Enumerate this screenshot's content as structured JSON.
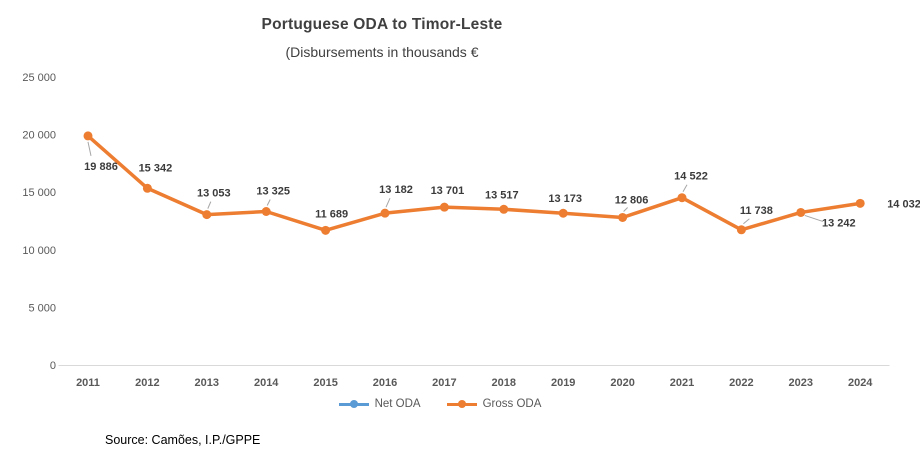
{
  "chart_data": {
    "type": "line",
    "title": "Portuguese ODA to Timor-Leste",
    "subtitle": "(Disbursements in thousands €",
    "categories": [
      "2011",
      "2012",
      "2013",
      "2014",
      "2015",
      "2016",
      "2017",
      "2018",
      "2019",
      "2020",
      "2021",
      "2022",
      "2023",
      "2024"
    ],
    "series": [
      {
        "name": "Net ODA",
        "color": "#5B9BD5",
        "visible_in_plot": false
      },
      {
        "name": "Gross ODA",
        "color": "#ED7D31",
        "values": [
          19886,
          15342,
          13053,
          13325,
          11689,
          13182,
          13701,
          13517,
          13173,
          12806,
          14522,
          11738,
          13242,
          14032
        ],
        "value_labels": [
          "19 886",
          "15 342",
          "13 053",
          "13 325",
          "11 689",
          "13 182",
          "13 701",
          "13 517",
          "13 173",
          "12 806",
          "14 522",
          "11 738",
          "13 242",
          "14 032"
        ]
      }
    ],
    "ylim": [
      0,
      25000
    ],
    "yticks": [
      {
        "value": 0,
        "label": "0"
      },
      {
        "value": 5000,
        "label": "5 000"
      },
      {
        "value": 10000,
        "label": "10 000"
      },
      {
        "value": 15000,
        "label": "15 000"
      },
      {
        "value": 20000,
        "label": "20 000"
      },
      {
        "value": 25000,
        "label": "25 000"
      }
    ],
    "grid": false,
    "legend_position": "bottom"
  },
  "source_note": "Source: Camões, I.P./GPPE",
  "colors": {
    "gross_oda_line": "#ED7D31",
    "net_oda_line": "#5B9BD5",
    "data_label_text": "#3B3B3B",
    "axis_text": "#595959",
    "axis_line": "#D9D9D9",
    "leader_line": "#A6A6A6",
    "title_text": "#404040"
  }
}
